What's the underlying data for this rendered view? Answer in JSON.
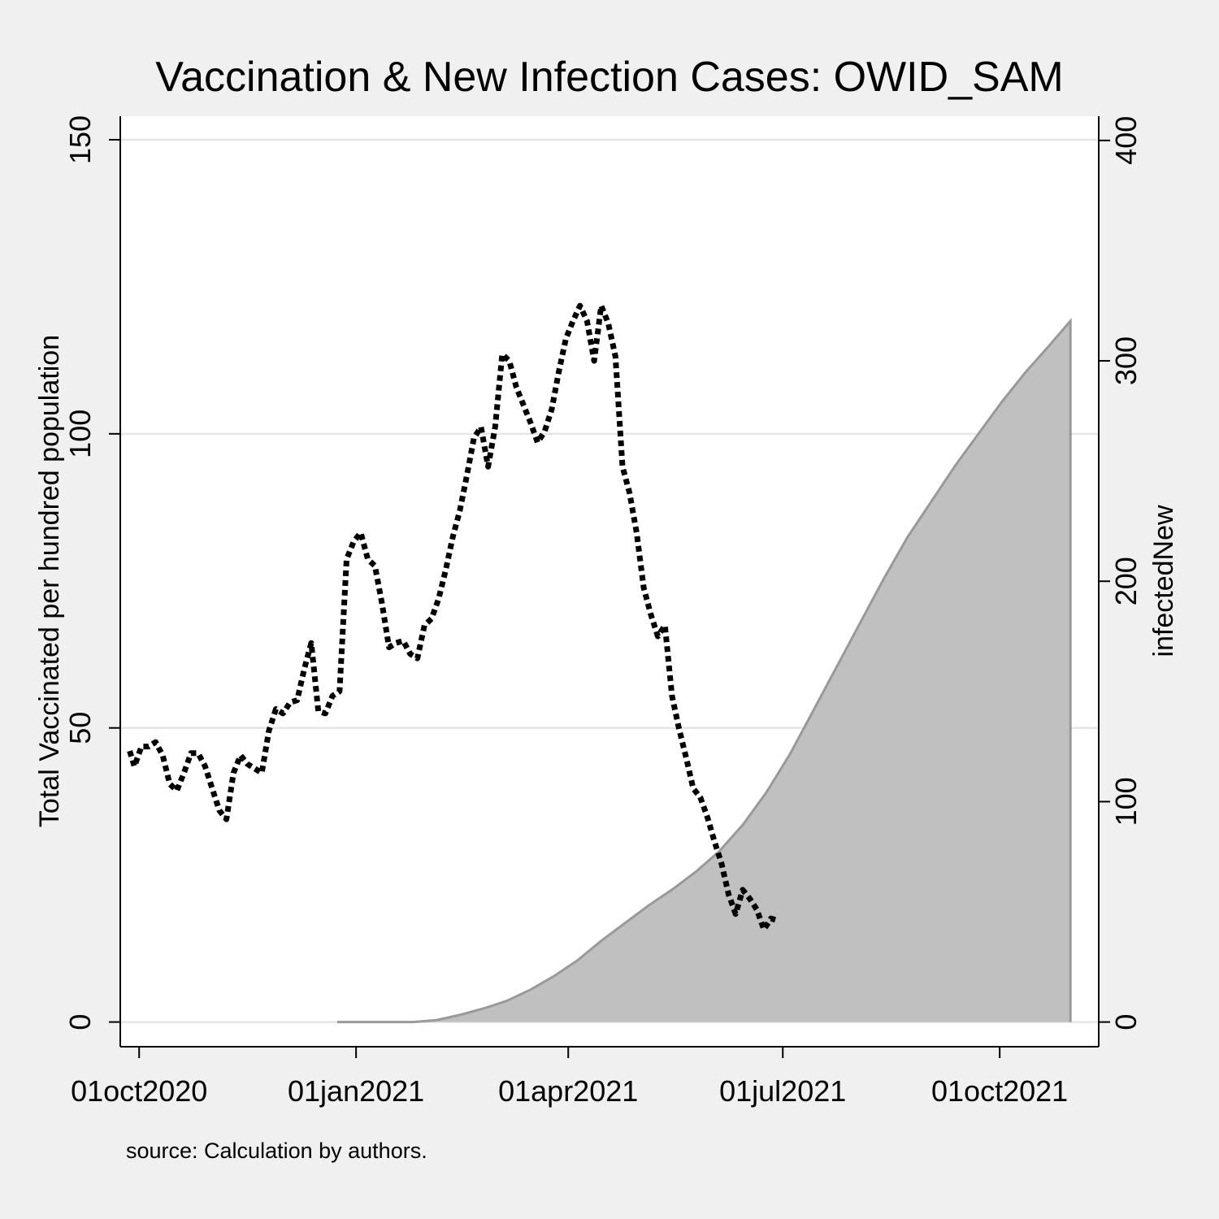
{
  "chart_data": {
    "type": "area",
    "title": "Vaccination & New Infection Cases: OWID_SAM",
    "note": "source: Calculation by authors.",
    "x_axis": {
      "type": "date",
      "ticks": [
        {
          "date": "2020-10-01",
          "label": "01oct2020"
        },
        {
          "date": "2021-01-01",
          "label": "01jan2021"
        },
        {
          "date": "2021-04-01",
          "label": "01apr2021"
        },
        {
          "date": "2021-07-01",
          "label": "01jul2021"
        },
        {
          "date": "2021-10-01",
          "label": "01oct2021"
        }
      ],
      "range": [
        "2020-09-23",
        "2021-11-12"
      ]
    },
    "y_left": {
      "label": "Total Vaccinated per hundred population",
      "range": [
        -4.2,
        154
      ],
      "ticks": [
        0,
        50,
        100,
        150
      ],
      "grid": true
    },
    "y_right": {
      "label": "infectedNew",
      "range": [
        -11.2,
        411
      ],
      "ticks": [
        0,
        100,
        200,
        300,
        400
      ]
    },
    "series": [
      {
        "kind": "area",
        "axis": "left",
        "color": "#c0c0c0",
        "edge_color": "#999999",
        "points": [
          [
            "2020-12-24",
            0
          ],
          [
            "2021-01-25",
            0
          ],
          [
            "2021-02-04",
            0.3
          ],
          [
            "2021-02-14",
            1.2
          ],
          [
            "2021-02-24",
            2.3
          ],
          [
            "2021-03-06",
            3.6
          ],
          [
            "2021-03-16",
            5.5
          ],
          [
            "2021-03-26",
            7.8
          ],
          [
            "2021-04-05",
            10.5
          ],
          [
            "2021-04-15",
            13.8
          ],
          [
            "2021-04-25",
            16.8
          ],
          [
            "2021-05-05",
            19.8
          ],
          [
            "2021-05-15",
            22.5
          ],
          [
            "2021-05-25",
            25.5
          ],
          [
            "2021-06-04",
            29.0
          ],
          [
            "2021-06-14",
            33.5
          ],
          [
            "2021-06-24",
            39.0
          ],
          [
            "2021-07-04",
            45.5
          ],
          [
            "2021-07-14",
            53.0
          ],
          [
            "2021-07-24",
            60.5
          ],
          [
            "2021-08-03",
            68.0
          ],
          [
            "2021-08-13",
            75.5
          ],
          [
            "2021-08-23",
            82.5
          ],
          [
            "2021-09-02",
            88.5
          ],
          [
            "2021-09-12",
            94.5
          ],
          [
            "2021-09-22",
            100.0
          ],
          [
            "2021-10-02",
            105.5
          ],
          [
            "2021-10-12",
            110.5
          ],
          [
            "2021-10-22",
            115.0
          ],
          [
            "2021-10-31",
            119.2
          ]
        ]
      },
      {
        "kind": "line",
        "axis": "right",
        "color": "#000000",
        "style": "dotted",
        "points": [
          [
            "2020-09-27",
            123
          ],
          [
            "2020-09-29",
            116
          ],
          [
            "2020-10-02",
            125
          ],
          [
            "2020-10-05",
            125
          ],
          [
            "2020-10-08",
            127
          ],
          [
            "2020-10-11",
            121
          ],
          [
            "2020-10-14",
            108
          ],
          [
            "2020-10-17",
            105
          ],
          [
            "2020-10-20",
            113
          ],
          [
            "2020-10-23",
            122
          ],
          [
            "2020-10-26",
            122
          ],
          [
            "2020-10-29",
            116
          ],
          [
            "2020-11-01",
            106
          ],
          [
            "2020-11-04",
            96
          ],
          [
            "2020-11-07",
            92
          ],
          [
            "2020-11-10",
            113
          ],
          [
            "2020-11-13",
            121
          ],
          [
            "2020-11-16",
            117
          ],
          [
            "2020-11-19",
            115
          ],
          [
            "2020-11-22",
            113
          ],
          [
            "2020-11-25",
            132
          ],
          [
            "2020-11-28",
            142
          ],
          [
            "2020-12-01",
            140
          ],
          [
            "2020-12-04",
            145
          ],
          [
            "2020-12-07",
            146
          ],
          [
            "2020-12-10",
            160
          ],
          [
            "2020-12-13",
            172
          ],
          [
            "2020-12-16",
            141
          ],
          [
            "2020-12-19",
            140
          ],
          [
            "2020-12-22",
            148
          ],
          [
            "2020-12-25",
            150
          ],
          [
            "2020-12-28",
            210
          ],
          [
            "2020-12-31",
            218
          ],
          [
            "2021-01-03",
            222
          ],
          [
            "2021-01-06",
            210
          ],
          [
            "2021-01-09",
            207
          ],
          [
            "2021-01-12",
            190
          ],
          [
            "2021-01-15",
            170
          ],
          [
            "2021-01-18",
            172
          ],
          [
            "2021-01-21",
            173
          ],
          [
            "2021-01-24",
            167
          ],
          [
            "2021-01-27",
            165
          ],
          [
            "2021-01-30",
            180
          ],
          [
            "2021-02-02",
            183
          ],
          [
            "2021-02-05",
            192
          ],
          [
            "2021-02-08",
            205
          ],
          [
            "2021-02-11",
            220
          ],
          [
            "2021-02-14",
            232
          ],
          [
            "2021-02-17",
            248
          ],
          [
            "2021-02-20",
            265
          ],
          [
            "2021-02-23",
            270
          ],
          [
            "2021-02-26",
            252
          ],
          [
            "2021-03-01",
            270
          ],
          [
            "2021-03-04",
            303
          ],
          [
            "2021-03-07",
            300
          ],
          [
            "2021-03-10",
            288
          ],
          [
            "2021-03-13",
            280
          ],
          [
            "2021-03-16",
            272
          ],
          [
            "2021-03-19",
            263
          ],
          [
            "2021-03-22",
            268
          ],
          [
            "2021-03-25",
            278
          ],
          [
            "2021-03-28",
            295
          ],
          [
            "2021-03-31",
            310
          ],
          [
            "2021-04-03",
            318
          ],
          [
            "2021-04-06",
            325
          ],
          [
            "2021-04-09",
            318
          ],
          [
            "2021-04-12",
            300
          ],
          [
            "2021-04-15",
            325
          ],
          [
            "2021-04-18",
            317
          ],
          [
            "2021-04-21",
            302
          ],
          [
            "2021-04-24",
            252
          ],
          [
            "2021-04-27",
            240
          ],
          [
            "2021-04-30",
            222
          ],
          [
            "2021-05-03",
            197
          ],
          [
            "2021-05-06",
            185
          ],
          [
            "2021-05-09",
            175
          ],
          [
            "2021-05-12",
            180
          ],
          [
            "2021-05-15",
            148
          ],
          [
            "2021-05-18",
            133
          ],
          [
            "2021-05-21",
            120
          ],
          [
            "2021-05-24",
            106
          ],
          [
            "2021-05-27",
            102
          ],
          [
            "2021-05-30",
            93
          ],
          [
            "2021-06-02",
            82
          ],
          [
            "2021-06-05",
            72
          ],
          [
            "2021-06-08",
            58
          ],
          [
            "2021-06-11",
            49
          ],
          [
            "2021-06-14",
            60
          ],
          [
            "2021-06-17",
            56
          ],
          [
            "2021-06-20",
            51
          ],
          [
            "2021-06-23",
            42
          ],
          [
            "2021-06-26",
            47
          ],
          [
            "2021-06-29",
            46
          ]
        ]
      }
    ]
  }
}
